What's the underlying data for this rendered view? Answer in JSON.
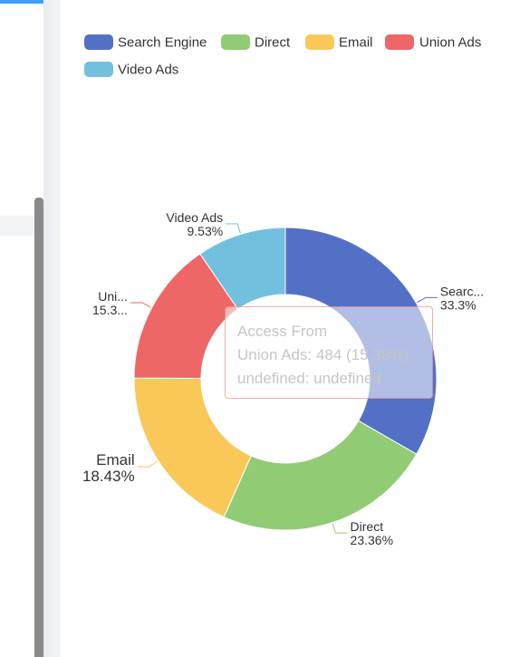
{
  "colors": {
    "accent": "#409eff",
    "series": [
      "#5470c6",
      "#91cc75",
      "#fac858",
      "#ee6666",
      "#73c0de"
    ],
    "tooltip_border": "#ee6666"
  },
  "chart_data": {
    "type": "pie",
    "variant": "donut",
    "title": "",
    "legend": {
      "placement": "top-left",
      "entries": [
        "Search Engine",
        "Direct",
        "Email",
        "Union Ads",
        "Video Ads"
      ]
    },
    "categories": [
      "Search Engine",
      "Direct",
      "Email",
      "Union Ads",
      "Video Ads"
    ],
    "values": [
      1048,
      735,
      580,
      484,
      300
    ],
    "percents": [
      "33.3%",
      "23.36%",
      "18.43%",
      "15.38%",
      "9.53%"
    ],
    "labels": [
      {
        "name": "Searc...",
        "percent": "33.3%"
      },
      {
        "name": "Direct",
        "percent": "23.36%"
      },
      {
        "name": "Email",
        "percent": "18.43%"
      },
      {
        "name": "Uni...",
        "percent": "15.3..."
      },
      {
        "name": "Video Ads",
        "percent": "9.53%"
      }
    ],
    "highlighted_index": 3,
    "tooltip": {
      "title": "Access From",
      "line1": "Union Ads: 484 (15.38%)",
      "line2": "undefined: undefined"
    }
  }
}
